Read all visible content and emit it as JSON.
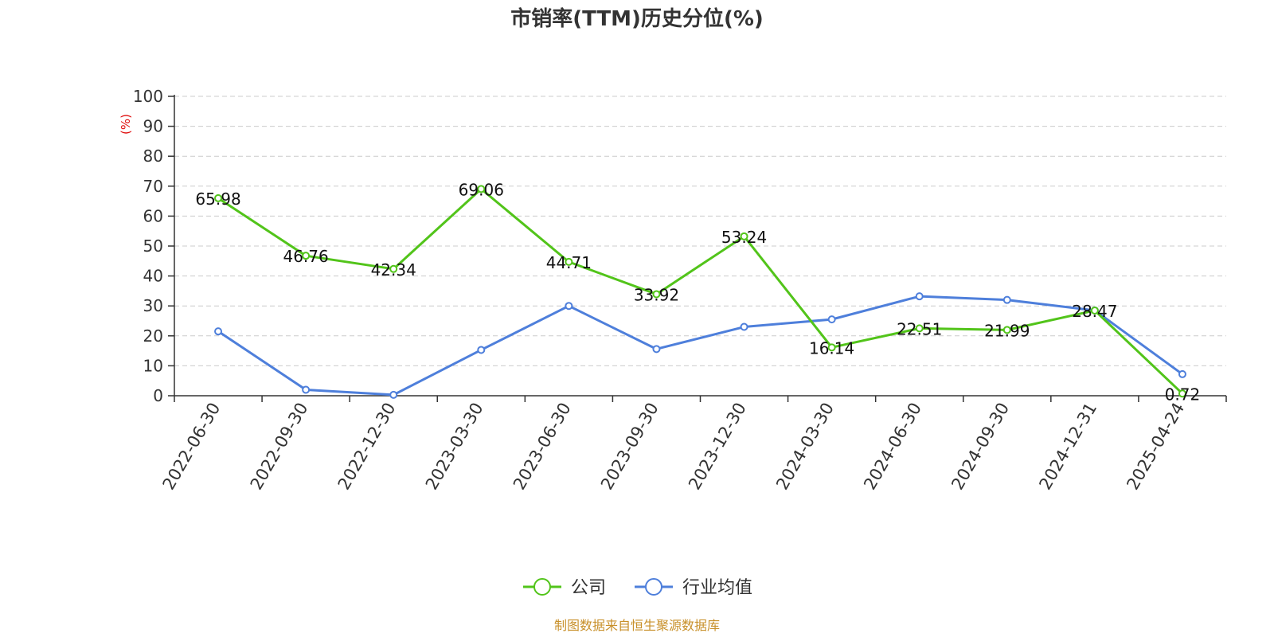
{
  "chart_data": {
    "type": "line",
    "title": "市销率(TTM)历史分位(%)",
    "ylabel": "(%)",
    "ylim": [
      0,
      100
    ],
    "yticks": [
      "0",
      "10",
      "20",
      "30",
      "40",
      "50",
      "60",
      "70",
      "80",
      "90",
      "100"
    ],
    "grid": true,
    "legend_position": "bottom",
    "categories": [
      "2022-06-30",
      "2022-09-30",
      "2022-12-30",
      "2023-03-30",
      "2023-06-30",
      "2023-09-30",
      "2023-12-30",
      "2024-03-30",
      "2024-06-30",
      "2024-09-30",
      "2024-12-31",
      "2025-04-24"
    ],
    "series": [
      {
        "name": "公司",
        "color": "#52c41a",
        "values": [
          65.98,
          46.76,
          42.34,
          69.06,
          44.71,
          33.92,
          53.24,
          16.14,
          22.51,
          21.99,
          28.47,
          0.72
        ],
        "labels": [
          "65.98",
          "46.76",
          "42.34",
          "69.06",
          "44.71",
          "33.92",
          "53.24",
          "16.14",
          "22.51",
          "21.99",
          "28.47",
          "0.72"
        ]
      },
      {
        "name": "行业均值",
        "color": "#4e7fdb",
        "values": [
          21.5,
          2.0,
          0.3,
          15.3,
          30.0,
          15.6,
          23.0,
          25.5,
          33.2,
          32.0,
          28.5,
          7.2
        ]
      }
    ],
    "source": "制图数据来自恒生聚源数据库"
  }
}
